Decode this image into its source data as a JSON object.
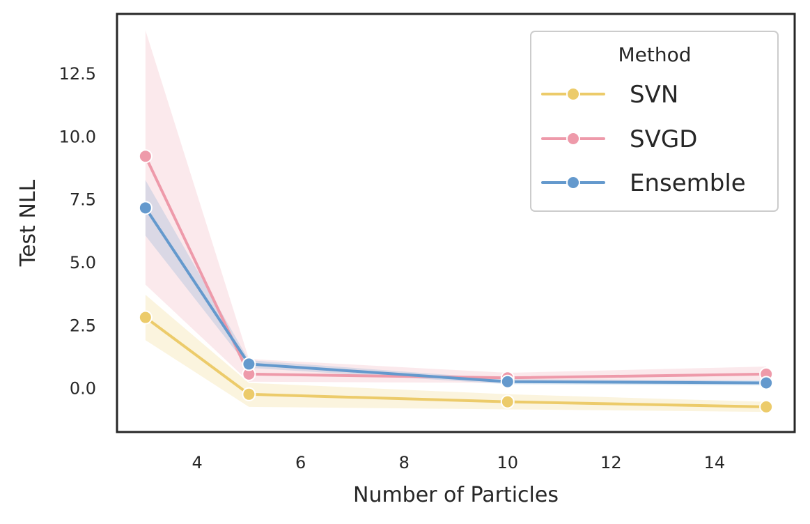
{
  "chart_data": {
    "type": "line",
    "title": "",
    "xlabel": "Number of Particles",
    "ylabel": "Test NLL",
    "x": [
      3,
      5,
      10,
      15
    ],
    "xlim": [
      2.45,
      15.55
    ],
    "ylim": [
      -1.75,
      14.85
    ],
    "xticks": [
      4,
      6,
      8,
      10,
      12,
      14
    ],
    "xtick_labels": [
      "4",
      "6",
      "8",
      "10",
      "12",
      "14"
    ],
    "yticks": [
      0.0,
      2.5,
      5.0,
      7.5,
      10.0,
      12.5
    ],
    "ytick_labels": [
      "0.0",
      "2.5",
      "5.0",
      "7.5",
      "10.0",
      "12.5"
    ],
    "grid": false,
    "legend": {
      "title": "Method",
      "position": "top-right"
    },
    "series": [
      {
        "name": "SVN",
        "color": "#ECCB6A",
        "values": [
          2.8,
          -0.25,
          -0.55,
          -0.75
        ],
        "ci_lower": [
          1.9,
          -0.75,
          -0.85,
          -0.95
        ],
        "ci_upper": [
          3.7,
          0.2,
          -0.25,
          -0.55
        ]
      },
      {
        "name": "SVGD",
        "color": "#EE9AAA",
        "values": [
          9.2,
          0.55,
          0.4,
          0.55
        ],
        "ci_lower": [
          4.1,
          0.25,
          0.2,
          0.3
        ],
        "ci_upper": [
          14.2,
          1.15,
          0.6,
          0.85
        ]
      },
      {
        "name": "Ensemble",
        "color": "#6499CD",
        "values": [
          7.15,
          0.95,
          0.25,
          0.2
        ],
        "ci_lower": [
          6.05,
          0.8,
          0.15,
          0.1
        ],
        "ci_upper": [
          8.25,
          1.1,
          0.35,
          0.3
        ]
      }
    ]
  }
}
